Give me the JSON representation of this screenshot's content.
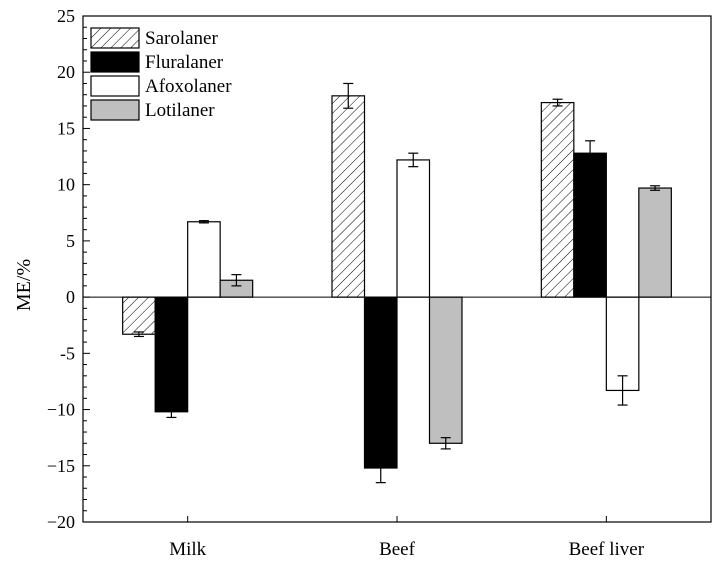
{
  "chart_data": {
    "type": "bar",
    "title": "",
    "xlabel": "",
    "ylabel": "ME/%",
    "ylim": [
      -20,
      25
    ],
    "yticks": [
      -20,
      -15,
      -10,
      -5,
      0,
      5,
      10,
      15,
      20,
      25
    ],
    "ytick_labels": [
      "−20",
      "−15",
      "−10",
      "-5",
      "0",
      "5",
      "10",
      "15",
      "20",
      "25"
    ],
    "grid": false,
    "legend_position": "top-left",
    "categories": [
      "Milk",
      "Beef",
      "Beef liver"
    ],
    "series": [
      {
        "name": "Sarolaner",
        "fill": "hatch",
        "values": [
          -3.3,
          17.9,
          17.3
        ],
        "errors": [
          0.2,
          1.1,
          0.3
        ]
      },
      {
        "name": "Fluralaner",
        "fill": "#000000",
        "values": [
          -10.2,
          -15.2,
          12.8
        ],
        "errors": [
          0.5,
          1.3,
          1.1
        ]
      },
      {
        "name": "Afoxolaner",
        "fill": "#ffffff",
        "values": [
          6.7,
          12.2,
          -8.3
        ],
        "errors": [
          0.1,
          0.6,
          1.3
        ]
      },
      {
        "name": "Lotilaner",
        "fill": "#bfbfbf",
        "values": [
          1.5,
          -13.0,
          9.7
        ],
        "errors": [
          0.5,
          0.5,
          0.2
        ]
      }
    ]
  }
}
